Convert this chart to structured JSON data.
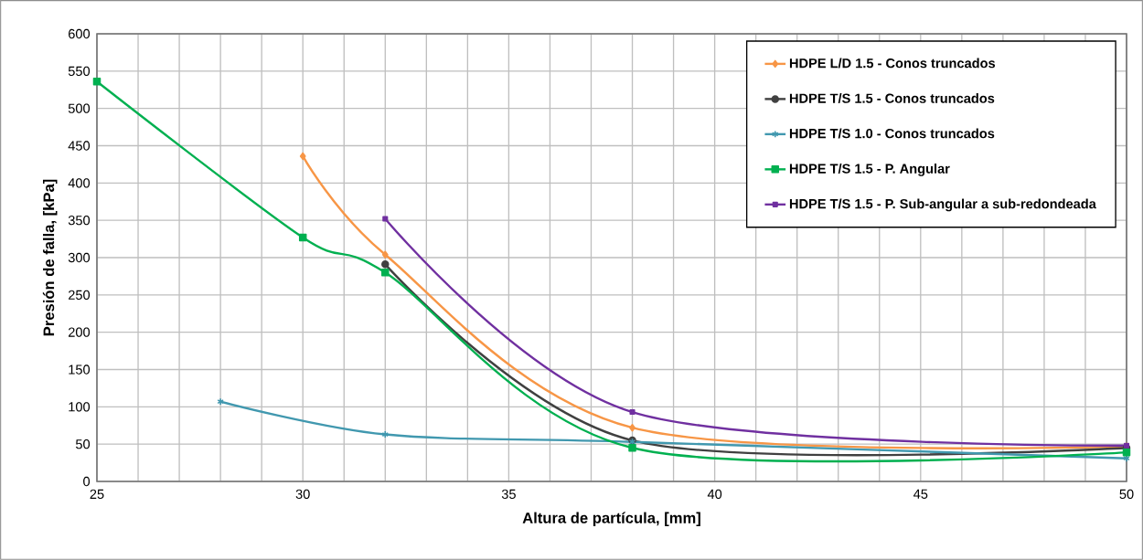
{
  "chart_data": {
    "type": "line",
    "xlabel": "Altura de partícula, [mm]",
    "ylabel": "Presión de falla, [kPa]",
    "xlim": [
      25,
      50
    ],
    "ylim": [
      0,
      600
    ],
    "xticks": [
      25,
      {
        "value": 26,
        "label": null
      },
      {
        "value": 27,
        "label": null
      },
      {
        "value": 28,
        "label": null
      },
      {
        "value": 29,
        "label": null
      },
      30,
      {
        "value": 31,
        "label": null
      },
      {
        "value": 32,
        "label": null
      },
      {
        "value": 33,
        "label": null
      },
      {
        "value": 34,
        "label": null
      },
      35,
      {
        "value": 36,
        "label": null
      },
      {
        "value": 37,
        "label": null
      },
      {
        "value": 38,
        "label": null
      },
      {
        "value": 39,
        "label": null
      },
      40,
      {
        "value": 41,
        "label": null
      },
      {
        "value": 42,
        "label": null
      },
      {
        "value": 43,
        "label": null
      },
      {
        "value": 44,
        "label": null
      },
      45,
      {
        "value": 46,
        "label": null
      },
      {
        "value": 47,
        "label": null
      },
      {
        "value": 48,
        "label": null
      },
      {
        "value": 49,
        "label": null
      },
      50
    ],
    "yticks": [
      0,
      50,
      100,
      150,
      200,
      250,
      300,
      350,
      400,
      450,
      500,
      550,
      600
    ],
    "grid": true,
    "legend": "top right",
    "series": [
      {
        "name": "HDPE L/D 1.5 - Conos truncados",
        "color": "#f79646",
        "marker": "diamond",
        "x": [
          30,
          32,
          38,
          50
        ],
        "values": [
          436,
          304,
          72,
          47
        ]
      },
      {
        "name": "HDPE T/S 1.5 - Conos truncados",
        "color": "#404040",
        "marker": "circle",
        "x": [
          32,
          38,
          50
        ],
        "values": [
          291,
          55,
          45
        ]
      },
      {
        "name": "HDPE T/S 1.0 - Conos truncados",
        "color": "#4198af",
        "marker": "cross",
        "x": [
          28,
          32,
          38,
          50
        ],
        "values": [
          107,
          63,
          53,
          31
        ]
      },
      {
        "name": "HDPE T/S 1.5 - P. Angular",
        "color": "#00b050",
        "marker": "square",
        "x": [
          25,
          30,
          32,
          38,
          50
        ],
        "values": [
          536,
          327,
          280,
          45,
          39
        ]
      },
      {
        "name": "HDPE T/S 1.5 - P. Sub-angular a sub-redondeada",
        "color": "#7030a0",
        "marker": "square",
        "x": [
          32,
          38,
          50
        ],
        "values": [
          352,
          93,
          48
        ]
      }
    ]
  }
}
